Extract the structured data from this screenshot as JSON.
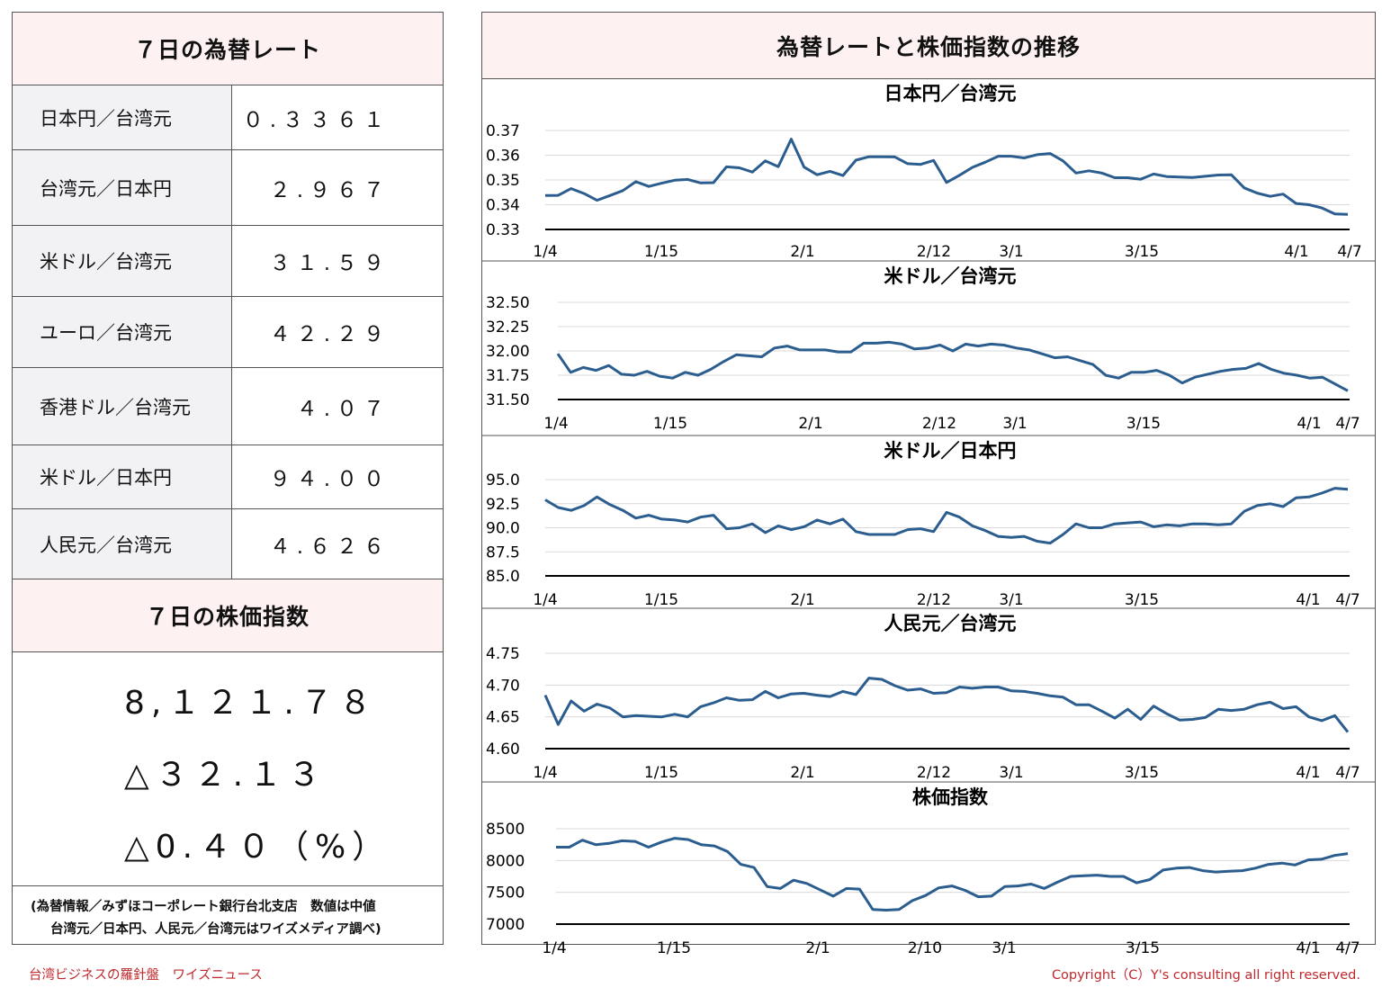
{
  "rates_panel": {
    "title": "７日の為替レート",
    "rows": [
      {
        "label": "日本円／台湾元",
        "value": "０.３３６１"
      },
      {
        "label": "台湾元／日本円",
        "value": "２.９６７"
      },
      {
        "label": "米ドル／台湾元",
        "value": "３１.５９"
      },
      {
        "label": "ユーロ／台湾元",
        "value": "４２.２９"
      },
      {
        "label": "香港ドル／台湾元",
        "value": "４.０７"
      },
      {
        "label": "米ドル／日本円",
        "value": "９４.００"
      },
      {
        "label": "人民元／台湾元",
        "value": "４.６２６"
      }
    ]
  },
  "stock_panel": {
    "title": "７日の株価指数",
    "index_value": "8,１２１.７８",
    "change": "△３２.１３",
    "change_pct": "△0.４０（%）"
  },
  "notes": {
    "line1": "(為替情報／みずほコーポレート銀行台北支店　数値は中値",
    "line2": "台湾元／日本円、人民元／台湾元はワイズメディア調べ)"
  },
  "right_panel": {
    "title": "為替レートと株価指数の推移"
  },
  "footer": {
    "left": "台湾ビジネスの羅針盤　ワイズニュース",
    "right": "Copyright（C）Y's consulting all right reserved."
  },
  "chart_style": {
    "line_color": "#2b5d8f",
    "grid_color": "#d9d9d9",
    "axis_color": "#000000"
  },
  "chart_data": [
    {
      "type": "line",
      "title": "日本円／台湾元",
      "ylim": [
        0.33,
        0.37
      ],
      "yticks": [
        "0.37",
        "0.36",
        "0.35",
        "0.34",
        "0.33"
      ],
      "xtick_labels": [
        "1/4",
        "1/15",
        "2/1",
        "2/12",
        "3/1",
        "3/15",
        "4/1",
        "4/7"
      ],
      "series": [
        {
          "values": [
            0.3437,
            0.3438,
            0.3465,
            0.3445,
            0.3418,
            0.3437,
            0.3457,
            0.3493,
            0.3474,
            0.3487,
            0.3499,
            0.3502,
            0.3488,
            0.3489,
            0.3553,
            0.3549,
            0.3532,
            0.3577,
            0.3554,
            0.3665,
            0.3552,
            0.3521,
            0.3535,
            0.3518,
            0.358,
            0.3594,
            0.3594,
            0.3593,
            0.3566,
            0.3563,
            0.3579,
            0.349,
            0.3519,
            0.3551,
            0.3572,
            0.3596,
            0.3596,
            0.3589,
            0.3602,
            0.3607,
            0.3577,
            0.3528,
            0.3537,
            0.3528,
            0.3509,
            0.3509,
            0.3503,
            0.3524,
            0.3514,
            0.3512,
            0.351,
            0.3515,
            0.352,
            0.3521,
            0.3468,
            0.3447,
            0.3434,
            0.3443,
            0.3405,
            0.34,
            0.3387,
            0.3363,
            0.3361
          ]
        }
      ]
    },
    {
      "type": "line",
      "title": "米ドル／台湾元",
      "ylim": [
        31.5,
        32.5
      ],
      "yticks": [
        "32.50",
        "32.25",
        "32.00",
        "31.75",
        "31.50"
      ],
      "xtick_labels": [
        "1/4",
        "1/15",
        "2/1",
        "2/12",
        "3/1",
        "3/15",
        "4/1",
        "4/7"
      ],
      "series": [
        {
          "values": [
            31.97,
            31.78,
            31.83,
            31.8,
            31.85,
            31.76,
            31.75,
            31.79,
            31.74,
            31.72,
            31.78,
            31.75,
            31.81,
            31.89,
            31.96,
            31.95,
            31.94,
            32.03,
            32.05,
            32.01,
            32.01,
            32.01,
            31.99,
            31.99,
            32.08,
            32.08,
            32.09,
            32.07,
            32.02,
            32.03,
            32.06,
            32.0,
            32.07,
            32.05,
            32.07,
            32.06,
            32.03,
            32.01,
            31.97,
            31.93,
            31.94,
            31.9,
            31.86,
            31.75,
            31.72,
            31.78,
            31.78,
            31.8,
            31.75,
            31.67,
            31.73,
            31.76,
            31.79,
            31.81,
            31.82,
            31.87,
            31.81,
            31.77,
            31.75,
            31.72,
            31.73,
            31.66,
            31.59
          ]
        }
      ]
    },
    {
      "type": "line",
      "title": "米ドル／日本円",
      "ylim": [
        85.0,
        95.0
      ],
      "yticks": [
        "95.0",
        "92.5",
        "90.0",
        "87.5",
        "85.0"
      ],
      "xtick_labels": [
        "1/4",
        "1/15",
        "2/1",
        "2/12",
        "3/1",
        "3/15",
        "4/1",
        "4/7"
      ],
      "series": [
        {
          "values": [
            92.9,
            92.1,
            91.8,
            92.3,
            93.2,
            92.4,
            91.8,
            91.0,
            91.3,
            90.9,
            90.8,
            90.6,
            91.1,
            91.3,
            89.9,
            90.0,
            90.4,
            89.5,
            90.2,
            89.8,
            90.1,
            90.8,
            90.4,
            90.9,
            89.6,
            89.3,
            89.3,
            89.3,
            89.8,
            89.9,
            89.6,
            91.6,
            91.1,
            90.2,
            89.7,
            89.1,
            89.0,
            89.1,
            88.6,
            88.4,
            89.3,
            90.4,
            90.0,
            90.0,
            90.4,
            90.5,
            90.6,
            90.1,
            90.3,
            90.2,
            90.4,
            90.4,
            90.3,
            90.4,
            91.7,
            92.3,
            92.5,
            92.2,
            93.1,
            93.2,
            93.6,
            94.1,
            94.0
          ]
        }
      ]
    },
    {
      "type": "line",
      "title": "人民元／台湾元",
      "ylim": [
        4.6,
        4.75
      ],
      "yticks": [
        "4.75",
        "4.70",
        "4.65",
        "4.60"
      ],
      "xtick_labels": [
        "1/4",
        "1/15",
        "2/1",
        "2/12",
        "3/1",
        "3/15",
        "4/1",
        "4/7"
      ],
      "series": [
        {
          "values": [
            4.684,
            4.638,
            4.675,
            4.659,
            4.67,
            4.664,
            4.65,
            4.652,
            4.651,
            4.65,
            4.654,
            4.65,
            4.666,
            4.672,
            4.68,
            4.676,
            4.677,
            4.69,
            4.68,
            4.686,
            4.687,
            4.684,
            4.682,
            4.69,
            4.685,
            4.711,
            4.709,
            4.699,
            4.692,
            4.694,
            4.687,
            4.688,
            4.697,
            4.695,
            4.697,
            4.697,
            4.691,
            4.69,
            4.687,
            4.683,
            4.681,
            4.669,
            4.669,
            4.659,
            4.648,
            4.662,
            4.646,
            4.667,
            4.655,
            4.645,
            4.646,
            4.649,
            4.662,
            4.66,
            4.662,
            4.669,
            4.673,
            4.663,
            4.666,
            4.65,
            4.644,
            4.652,
            4.626
          ]
        }
      ]
    },
    {
      "type": "line",
      "title": "株価指数",
      "ylim": [
        7000,
        8500
      ],
      "yticks": [
        "8500",
        "8000",
        "7500",
        "7000"
      ],
      "xtick_labels": [
        "1/4",
        "1/15",
        "2/1",
        "2/10",
        "3/1",
        "3/15",
        "4/1",
        "4/7"
      ],
      "series": [
        {
          "values": [
            8210,
            8210,
            8320,
            8250,
            8270,
            8310,
            8300,
            8210,
            8290,
            8350,
            8330,
            8250,
            8230,
            8140,
            7940,
            7890,
            7590,
            7560,
            7690,
            7640,
            7540,
            7440,
            7560,
            7550,
            7230,
            7220,
            7230,
            7370,
            7450,
            7570,
            7600,
            7530,
            7430,
            7440,
            7590,
            7600,
            7630,
            7560,
            7660,
            7750,
            7760,
            7770,
            7750,
            7750,
            7650,
            7700,
            7850,
            7880,
            7890,
            7840,
            7820,
            7830,
            7840,
            7880,
            7940,
            7960,
            7930,
            8010,
            8020,
            8080,
            8110
          ]
        }
      ]
    }
  ]
}
